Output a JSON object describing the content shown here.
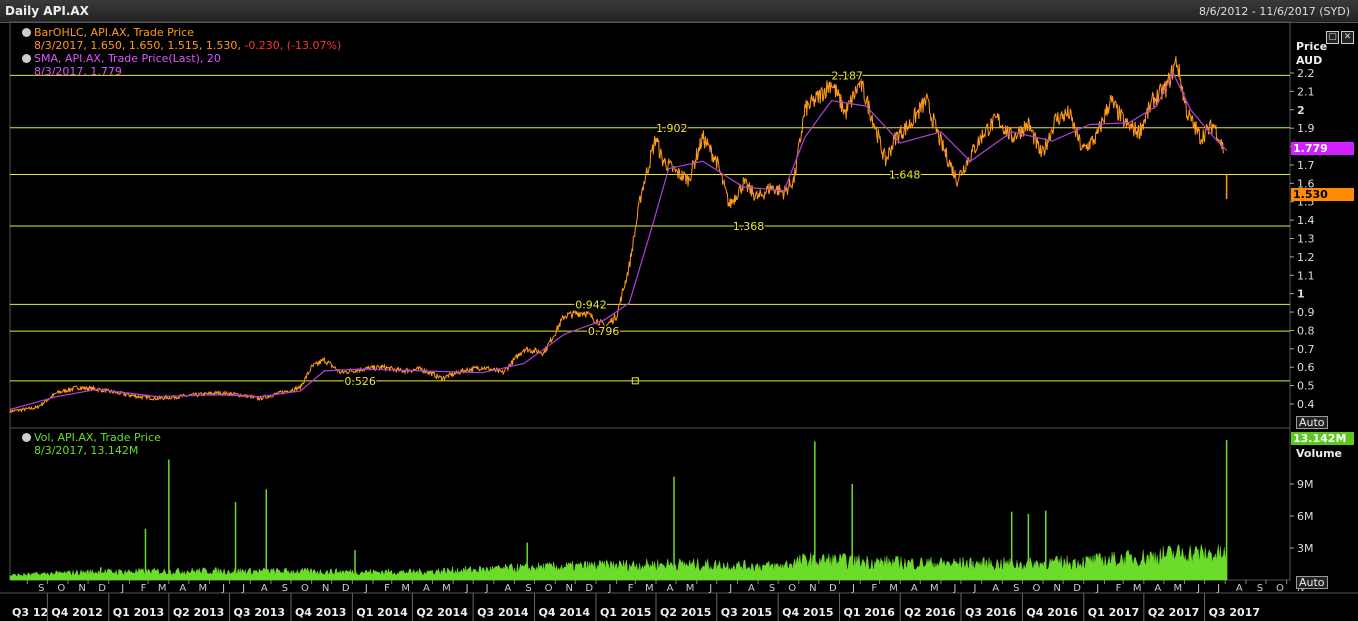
{
  "window": {
    "title": "Daily API.AX",
    "date_range": "8/6/2012 - 11/6/2017 (SYD)"
  },
  "legend": {
    "price_series": "BarOHLC, API.AX, Trade Price",
    "price_values": "8/3/2017, 1.650, 1.650, 1.515, 1.530,",
    "price_change": "-0.230, (-13.07%)",
    "sma_series": "SMA, API.AX, Trade Price(Last),  20",
    "sma_values": "8/3/2017, 1.779",
    "vol_series": "Vol, API.AX, Trade Price",
    "vol_values": "8/3/2017, 13.142M"
  },
  "axis": {
    "price_title": "Price",
    "price_unit": "AUD",
    "volume_title": "Volume",
    "auto_label": "Auto",
    "current_sma": "1.779",
    "current_price": "1.530",
    "current_volume": "13.142M",
    "price_ticks": [
      "2.2",
      "2.1",
      "2",
      "1.9",
      "1.8",
      "1.7",
      "1.6",
      "1.5",
      "1.4",
      "1.3",
      "1.2",
      "1.1",
      "1",
      "0.9",
      "0.8",
      "0.7",
      "0.6",
      "0.5",
      "0.4"
    ],
    "volume_ticks": [
      "9M",
      "6M",
      "3M"
    ],
    "months": [
      "S",
      "O",
      "N",
      "D",
      "J",
      "F",
      "M",
      "A",
      "M",
      "J",
      "J",
      "A",
      "S",
      "O",
      "N",
      "D",
      "J",
      "F",
      "M",
      "A",
      "M",
      "J",
      "J",
      "A",
      "S",
      "O",
      "N",
      "D",
      "J",
      "F",
      "M",
      "A",
      "M",
      "J",
      "J",
      "A",
      "S",
      "O",
      "N",
      "D",
      "J",
      "F",
      "M",
      "A",
      "M",
      "J",
      "J",
      "A",
      "S",
      "O",
      "N",
      "D",
      "J",
      "F",
      "M",
      "A",
      "M",
      "J",
      "J",
      "A",
      "S",
      "O",
      "N"
    ],
    "quarters": [
      "Q3 12",
      "Q4 2012",
      "Q1 2013",
      "Q2 2013",
      "Q3 2013",
      "Q4 2013",
      "Q1 2014",
      "Q2 2014",
      "Q3 2014",
      "Q4 2014",
      "Q1 2015",
      "Q2 2015",
      "Q3 2015",
      "Q4 2015",
      "Q1 2016",
      "Q2 2016",
      "Q3 2016",
      "Q4 2016",
      "Q1 2017",
      "Q2 2017",
      "Q3 2017"
    ]
  },
  "colors": {
    "price": "#ff9a1a",
    "sma": "#b040e0",
    "volume": "#6cdc2a",
    "levels": "#e8e830",
    "change_negative": "#ff3333",
    "sma_tag": "#d020ff",
    "price_tag": "#ff8c00",
    "volume_tag": "#5cc81e"
  },
  "chart_data": {
    "type": "line",
    "title": "Daily API.AX",
    "x_range": [
      "2012-08-06",
      "2017-11-06"
    ],
    "price_ylim": [
      0.35,
      2.3
    ],
    "volume_ylim": [
      0,
      13.5
    ],
    "price_unit": "AUD",
    "levels": [
      {
        "value": 2.187,
        "label": "2.187"
      },
      {
        "value": 1.902,
        "label": "1.902"
      },
      {
        "value": 1.648,
        "label": "1.648"
      },
      {
        "value": 1.368,
        "label": "1.368"
      },
      {
        "value": 0.942,
        "label": "0.942"
      },
      {
        "value": 0.796,
        "label": "0.796"
      },
      {
        "value": 0.526,
        "label": "0.526"
      }
    ],
    "series": [
      {
        "name": "BarOHLC, API.AX, Trade Price",
        "x": [
          "2012-08-06",
          "2012-09-15",
          "2012-10-15",
          "2012-11-15",
          "2012-12-15",
          "2013-01-15",
          "2013-02-15",
          "2013-03-15",
          "2013-04-15",
          "2013-05-15",
          "2013-06-15",
          "2013-07-15",
          "2013-08-15",
          "2013-09-15",
          "2013-10-15",
          "2013-11-01",
          "2013-11-20",
          "2013-12-15",
          "2014-01-15",
          "2014-02-15",
          "2014-03-15",
          "2014-04-15",
          "2014-05-15",
          "2014-06-15",
          "2014-07-15",
          "2014-08-15",
          "2014-09-15",
          "2014-10-15",
          "2014-11-15",
          "2014-12-15",
          "2015-01-15",
          "2015-02-01",
          "2015-02-20",
          "2015-03-10",
          "2015-04-01",
          "2015-04-10",
          "2015-05-01",
          "2015-05-20",
          "2015-06-10",
          "2015-07-01",
          "2015-07-20",
          "2015-08-10",
          "2015-09-01",
          "2015-09-20",
          "2015-10-10",
          "2015-10-25",
          "2015-11-10",
          "2015-12-01",
          "2015-12-20",
          "2016-01-10",
          "2016-02-01",
          "2016-02-20",
          "2016-03-10",
          "2016-03-25",
          "2016-04-15",
          "2016-05-10",
          "2016-06-01",
          "2016-06-25",
          "2016-07-15",
          "2016-08-05",
          "2016-08-25",
          "2016-09-15",
          "2016-10-10",
          "2016-10-30",
          "2016-11-20",
          "2016-12-10",
          "2016-12-30",
          "2017-01-20",
          "2017-02-10",
          "2017-03-05",
          "2017-03-25",
          "2017-04-15",
          "2017-05-05",
          "2017-05-20",
          "2017-06-05",
          "2017-06-25",
          "2017-07-15",
          "2017-07-30",
          "2017-08-03"
        ],
        "values": [
          0.36,
          0.38,
          0.46,
          0.49,
          0.48,
          0.46,
          0.44,
          0.43,
          0.44,
          0.45,
          0.46,
          0.45,
          0.43,
          0.46,
          0.49,
          0.6,
          0.64,
          0.57,
          0.59,
          0.6,
          0.58,
          0.59,
          0.54,
          0.58,
          0.6,
          0.57,
          0.7,
          0.68,
          0.88,
          0.9,
          0.82,
          0.88,
          1.15,
          1.55,
          1.85,
          1.73,
          1.66,
          1.62,
          1.85,
          1.72,
          1.48,
          1.6,
          1.52,
          1.58,
          1.55,
          1.62,
          2.0,
          2.07,
          2.15,
          1.98,
          2.15,
          1.95,
          1.72,
          1.85,
          1.92,
          2.05,
          1.82,
          1.62,
          1.75,
          1.88,
          1.95,
          1.85,
          1.92,
          1.75,
          1.95,
          1.98,
          1.78,
          1.85,
          2.05,
          1.92,
          1.88,
          2.05,
          2.12,
          2.27,
          1.98,
          1.85,
          1.92,
          1.78,
          1.53
        ]
      },
      {
        "name": "SMA, API.AX, Trade Price(Last),  20",
        "x": [
          "2012-08-06",
          "2012-10-15",
          "2012-12-15",
          "2013-03-15",
          "2013-06-15",
          "2013-08-15",
          "2013-10-15",
          "2013-11-20",
          "2014-01-15",
          "2014-04-15",
          "2014-07-15",
          "2014-09-15",
          "2014-11-15",
          "2015-01-15",
          "2015-02-20",
          "2015-03-25",
          "2015-04-20",
          "2015-06-10",
          "2015-08-10",
          "2015-10-10",
          "2015-11-10",
          "2015-12-20",
          "2016-02-10",
          "2016-04-01",
          "2016-06-01",
          "2016-07-15",
          "2016-09-15",
          "2016-11-15",
          "2017-01-10",
          "2017-03-10",
          "2017-04-20",
          "2017-05-15",
          "2017-06-10",
          "2017-07-15",
          "2017-08-03"
        ],
        "values": [
          0.37,
          0.44,
          0.48,
          0.44,
          0.45,
          0.44,
          0.47,
          0.58,
          0.59,
          0.58,
          0.57,
          0.62,
          0.78,
          0.86,
          0.95,
          1.35,
          1.68,
          1.72,
          1.58,
          1.56,
          1.85,
          2.05,
          2.02,
          1.82,
          1.88,
          1.72,
          1.88,
          1.83,
          1.92,
          1.93,
          2.02,
          2.2,
          2.0,
          1.85,
          1.779
        ]
      },
      {
        "name": "Vol, API.AX, Trade Price",
        "x": [
          "2012-12-20",
          "2013-02-25",
          "2013-04-01",
          "2013-07-10",
          "2013-08-25",
          "2014-01-05",
          "2014-09-20",
          "2015-04-28",
          "2015-11-25",
          "2016-01-20",
          "2016-09-15",
          "2016-10-10",
          "2016-11-05",
          "2017-08-03"
        ],
        "values": [
          1.2,
          4.8,
          11.3,
          7.3,
          8.5,
          2.8,
          3.5,
          9.7,
          13.0,
          9.0,
          6.4,
          6.2,
          6.5,
          13.142
        ]
      }
    ]
  }
}
